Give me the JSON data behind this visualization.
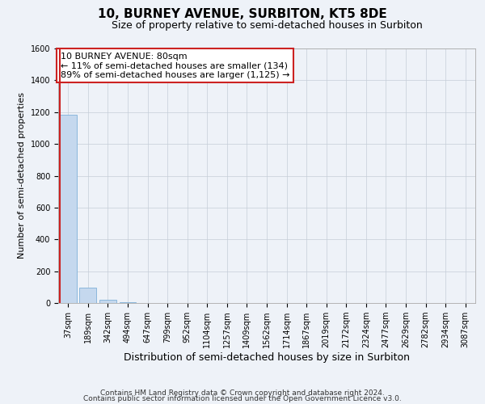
{
  "title": "10, BURNEY AVENUE, SURBITON, KT5 8DE",
  "subtitle": "Size of property relative to semi-detached houses in Surbiton",
  "xlabel": "Distribution of semi-detached houses by size in Surbiton",
  "ylabel": "Number of semi-detached properties",
  "categories": [
    "37sqm",
    "189sqm",
    "342sqm",
    "494sqm",
    "647sqm",
    "799sqm",
    "952sqm",
    "1104sqm",
    "1257sqm",
    "1409sqm",
    "1562sqm",
    "1714sqm",
    "1867sqm",
    "2019sqm",
    "2172sqm",
    "2324sqm",
    "2477sqm",
    "2629sqm",
    "2782sqm",
    "2934sqm",
    "3087sqm"
  ],
  "values": [
    1185,
    95,
    20,
    3,
    1,
    0,
    0,
    0,
    0,
    0,
    0,
    0,
    0,
    0,
    0,
    0,
    0,
    0,
    0,
    0,
    0
  ],
  "property_bar": 0,
  "bar_color": "#c5d8ee",
  "bar_edge_color": "#7fb0d8",
  "background_color": "#eef2f8",
  "grid_color": "#c5cdd8",
  "annotation_title": "10 BURNEY AVENUE: 80sqm",
  "annotation_line1": "← 11% of semi-detached houses are smaller (134)",
  "annotation_line2": "89% of semi-detached houses are larger (1,125) →",
  "annotation_box_color": "#ffffff",
  "annotation_border_color": "#cc2222",
  "red_line_color": "#cc2222",
  "ylim": [
    0,
    1600
  ],
  "yticks": [
    0,
    200,
    400,
    600,
    800,
    1000,
    1200,
    1400,
    1600
  ],
  "footer1": "Contains HM Land Registry data © Crown copyright and database right 2024.",
  "footer2": "Contains public sector information licensed under the Open Government Licence v3.0.",
  "title_fontsize": 11,
  "subtitle_fontsize": 9,
  "xlabel_fontsize": 9,
  "ylabel_fontsize": 8,
  "tick_fontsize": 7,
  "annotation_fontsize": 8,
  "footer_fontsize": 6.5
}
